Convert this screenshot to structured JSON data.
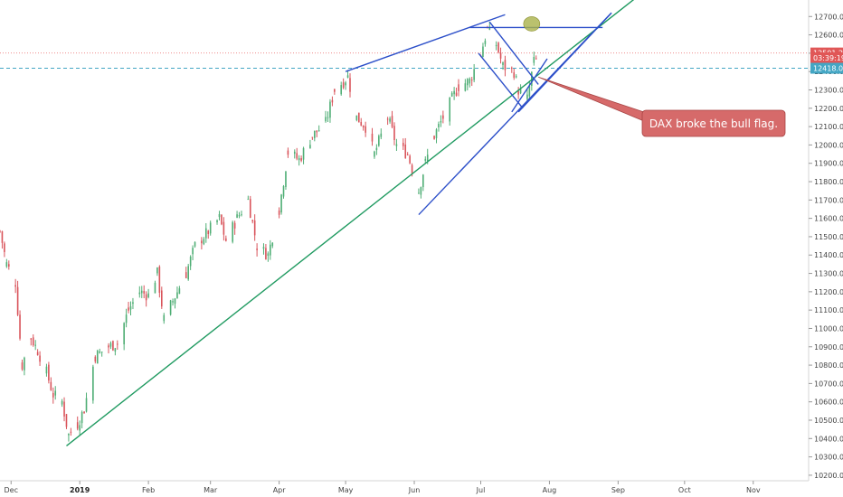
{
  "chart_data": {
    "type": "candlestick",
    "instrument": "DAX",
    "y_axis": {
      "ticks": [
        "12700.00",
        "12600.00",
        "12500.00",
        "12400.00",
        "12300.00",
        "12200.00",
        "12100.00",
        "12000.00",
        "11900.00",
        "11800.00",
        "11700.00",
        "11600.00",
        "11500.00",
        "11400.00",
        "11300.00",
        "11200.00",
        "11100.00",
        "11000.00",
        "10900.00",
        "10800.00",
        "10700.00",
        "10600.00",
        "10500.00",
        "10400.00",
        "10300.00",
        "10200.00"
      ],
      "range": [
        10170,
        12790
      ],
      "grid": false
    },
    "x_axis": {
      "labels": [
        "Dec",
        "2019",
        "Feb",
        "Mar",
        "Apr",
        "May",
        "Jun",
        "Jul",
        "Aug",
        "Sep",
        "Oct",
        "Nov"
      ],
      "bold_label": "2019",
      "range": [
        "2018-11-26",
        "2019-11-26"
      ]
    },
    "price_tags": [
      {
        "value": 12501.2,
        "text": "12501.20",
        "color": "#e05757"
      },
      {
        "value": 12475,
        "text": "03:39:19",
        "color": "#e05757"
      },
      {
        "value": 12418.01,
        "text": "12418.01",
        "color": "#43a6c4"
      }
    ],
    "horizontal_lines": [
      {
        "value": 12501.2,
        "style": "dotted",
        "color": "#ef8d8d"
      },
      {
        "value": 12418.01,
        "style": "dashed",
        "color": "#43a6c4"
      }
    ],
    "candles": {
      "up_color": "#4fae75",
      "down_color": "#d9545b",
      "anchors": [
        [
          "2018-11-26",
          11530
        ],
        [
          "2018-11-29",
          11350
        ],
        [
          "2018-12-03",
          11250
        ],
        [
          "2018-12-06",
          10800
        ],
        [
          "2018-12-10",
          10950
        ],
        [
          "2018-12-13",
          10880
        ],
        [
          "2018-12-17",
          10760
        ],
        [
          "2018-12-20",
          10640
        ],
        [
          "2018-12-24",
          10600
        ],
        [
          "2018-12-27",
          10420
        ],
        [
          "2018-12-31",
          10480
        ],
        [
          "2019-01-03",
          10560
        ],
        [
          "2019-01-08",
          10850
        ],
        [
          "2019-01-14",
          10900
        ],
        [
          "2019-01-18",
          10920
        ],
        [
          "2019-01-23",
          11100
        ],
        [
          "2019-01-28",
          11200
        ],
        [
          "2019-02-01",
          11180
        ],
        [
          "2019-02-05",
          11300
        ],
        [
          "2019-02-08",
          11050
        ],
        [
          "2019-02-12",
          11150
        ],
        [
          "2019-02-18",
          11300
        ],
        [
          "2019-02-22",
          11450
        ],
        [
          "2019-02-28",
          11530
        ],
        [
          "2019-03-05",
          11600
        ],
        [
          "2019-03-08",
          11480
        ],
        [
          "2019-03-13",
          11600
        ],
        [
          "2019-03-18",
          11700
        ],
        [
          "2019-03-22",
          11450
        ],
        [
          "2019-03-27",
          11400
        ],
        [
          "2019-04-01",
          11650
        ],
        [
          "2019-04-05",
          11960
        ],
        [
          "2019-04-10",
          11920
        ],
        [
          "2019-04-16",
          12050
        ],
        [
          "2019-04-22",
          12120
        ],
        [
          "2019-04-26",
          12300
        ],
        [
          "2019-05-02",
          12370
        ],
        [
          "2019-05-06",
          12150
        ],
        [
          "2019-05-10",
          12100
        ],
        [
          "2019-05-14",
          11950
        ],
        [
          "2019-05-20",
          12150
        ],
        [
          "2019-05-24",
          12000
        ],
        [
          "2019-05-29",
          11950
        ],
        [
          "2019-06-03",
          11750
        ],
        [
          "2019-06-06",
          11900
        ],
        [
          "2019-06-10",
          12050
        ],
        [
          "2019-06-14",
          12150
        ],
        [
          "2019-06-18",
          12250
        ],
        [
          "2019-06-21",
          12320
        ],
        [
          "2019-06-26",
          12350
        ],
        [
          "2019-07-01",
          12500
        ],
        [
          "2019-07-04",
          12630
        ],
        [
          "2019-07-08",
          12550
        ],
        [
          "2019-07-11",
          12430
        ],
        [
          "2019-07-16",
          12400
        ],
        [
          "2019-07-18",
          12300
        ],
        [
          "2019-07-22",
          12250
        ],
        [
          "2019-07-25",
          12450
        ],
        [
          "2019-07-29",
          12501
        ]
      ]
    },
    "drawings": [
      {
        "name": "long-term-trendline",
        "color": "#1f9a60",
        "points": [
          [
            "2018-12-26",
            10360
          ],
          [
            "2019-09-12",
            12830
          ]
        ]
      },
      {
        "name": "medium-trendline",
        "color": "#2c4fc9",
        "points": [
          [
            "2019-06-03",
            11620
          ],
          [
            "2019-08-29",
            12720
          ]
        ]
      },
      {
        "name": "flag-bottom-line",
        "color": "#2c4fc9",
        "points": [
          [
            "2019-07-18",
            12180
          ],
          [
            "2019-08-29",
            12720
          ]
        ]
      },
      {
        "name": "wedge-upper-line",
        "color": "#2c4fc9",
        "points": [
          [
            "2019-05-01",
            12400
          ],
          [
            "2019-07-12",
            12710
          ]
        ]
      },
      {
        "name": "flag-resistance-line",
        "color": "#2c4fc9",
        "points": [
          [
            "2019-06-26",
            12640
          ],
          [
            "2019-08-25",
            12640
          ]
        ]
      },
      {
        "name": "flag-left-line",
        "color": "#2c4fc9",
        "points": [
          [
            "2019-06-30",
            12500
          ],
          [
            "2019-07-20",
            12200
          ]
        ]
      },
      {
        "name": "flag-right-line",
        "color": "#2c4fc9",
        "points": [
          [
            "2019-07-05",
            12670
          ],
          [
            "2019-07-27",
            12330
          ]
        ]
      },
      {
        "name": "support-line-segment",
        "color": "#2c4fc9",
        "points": [
          [
            "2019-07-15",
            12180
          ],
          [
            "2019-07-31",
            12470
          ]
        ]
      }
    ],
    "highlight": {
      "date": "2019-07-24",
      "value": 12660,
      "color": "#a9b24a"
    },
    "annotation": {
      "text": "DAX broke the bull flag.",
      "background": "#d66a6a",
      "arrow_target": [
        "2019-07-27",
        12370
      ]
    }
  }
}
